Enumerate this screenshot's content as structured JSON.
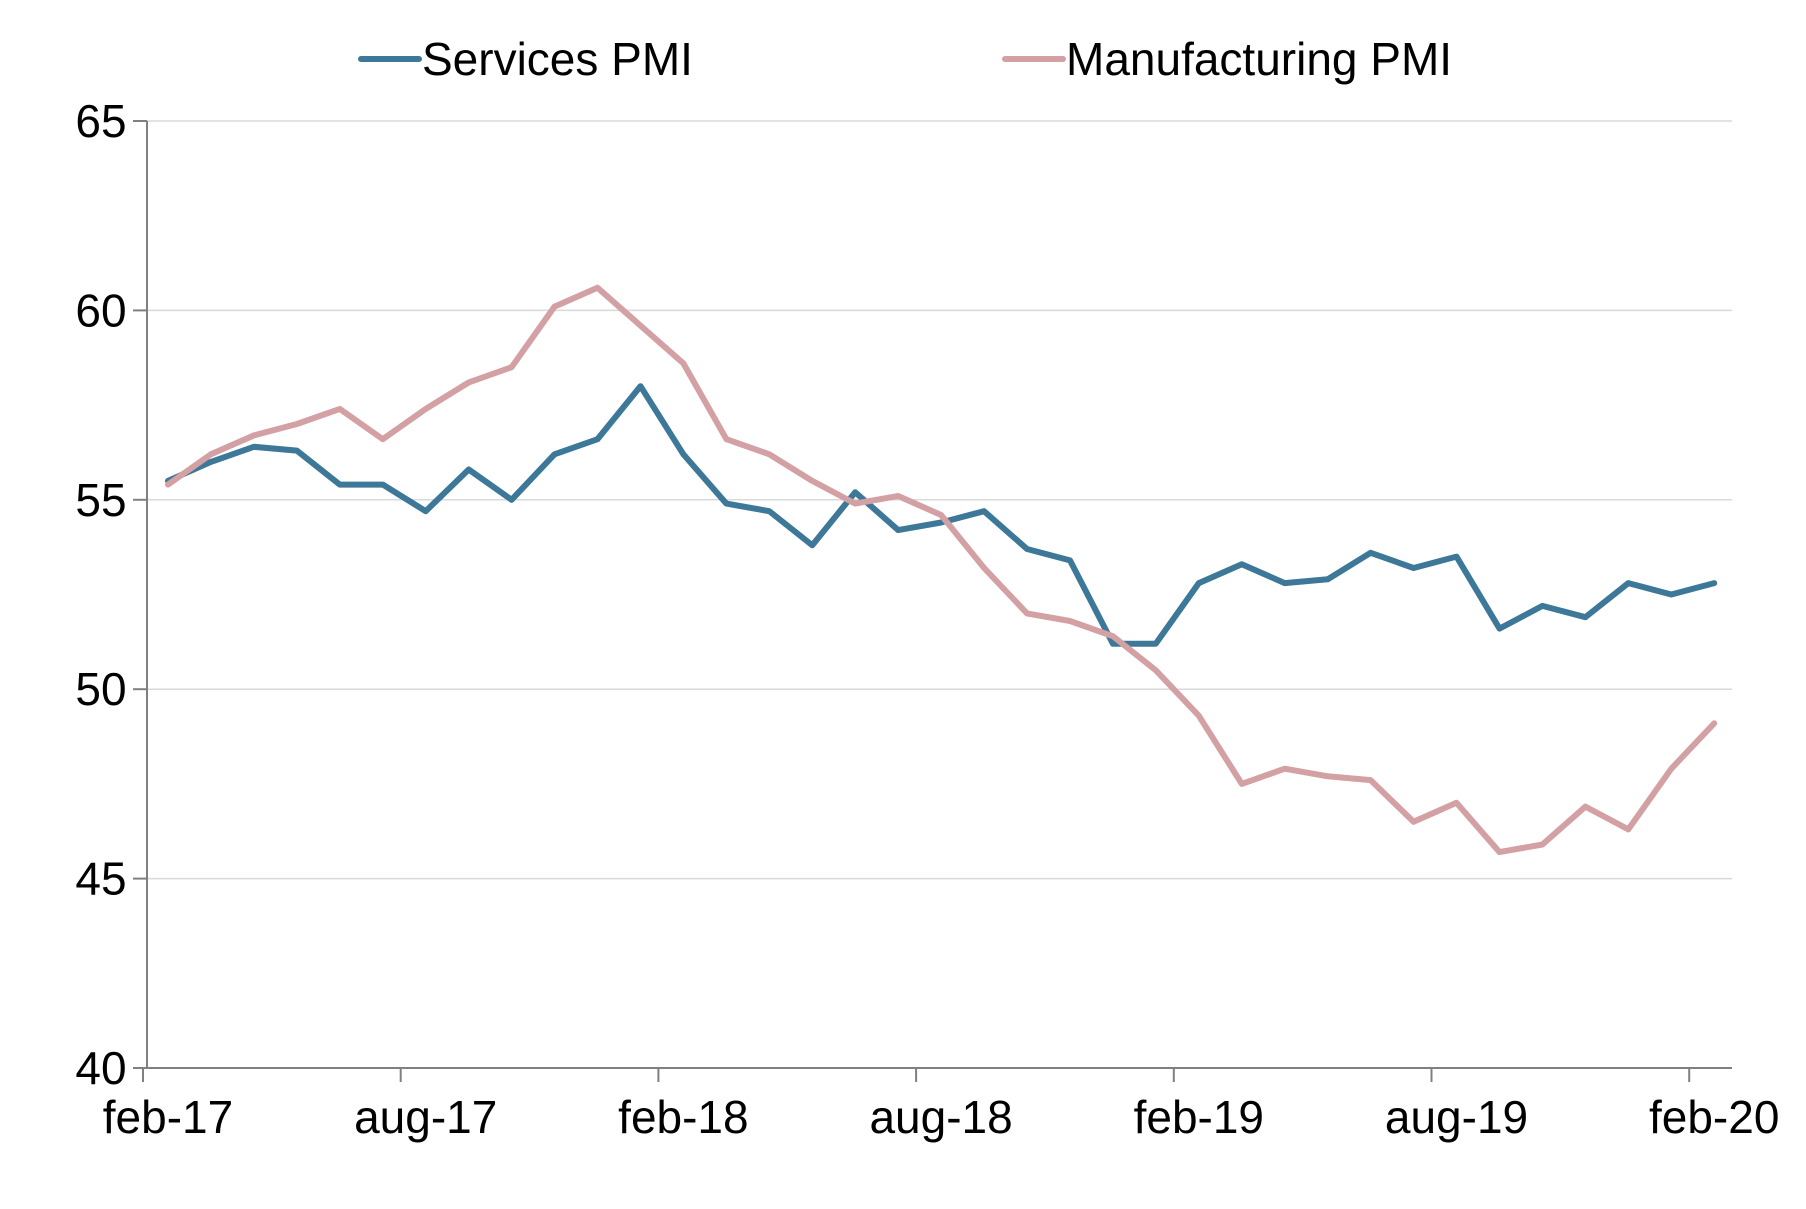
{
  "chart_data": {
    "type": "line",
    "title": "",
    "xlabel": "",
    "ylabel": "",
    "ylim": [
      40,
      65
    ],
    "yticks": [
      "40",
      "45",
      "50",
      "55",
      "60",
      "65"
    ],
    "x": [
      "2017-02",
      "2017-03",
      "2017-04",
      "2017-05",
      "2017-06",
      "2017-07",
      "2017-08",
      "2017-09",
      "2017-10",
      "2017-11",
      "2017-12",
      "2018-01",
      "2018-02",
      "2018-03",
      "2018-04",
      "2018-05",
      "2018-06",
      "2018-07",
      "2018-08",
      "2018-09",
      "2018-10",
      "2018-11",
      "2018-12",
      "2019-01",
      "2019-02",
      "2019-03",
      "2019-04",
      "2019-05",
      "2019-06",
      "2019-07",
      "2019-08",
      "2019-09",
      "2019-10",
      "2019-11",
      "2019-12",
      "2020-01",
      "2020-02"
    ],
    "xticks": [
      "feb-17",
      "aug-17",
      "feb-18",
      "aug-18",
      "feb-19",
      "aug-19",
      "feb-20"
    ],
    "xtick_dates": [
      "2017-02",
      "2017-08",
      "2018-02",
      "2018-08",
      "2019-02",
      "2019-08",
      "2020-02"
    ],
    "grid": "horizontal",
    "legend": "top",
    "series": [
      {
        "name": "Services PMI",
        "color": "#3d7898",
        "values": [
          55.5,
          56.0,
          56.4,
          56.3,
          55.4,
          55.4,
          54.7,
          55.8,
          55.0,
          56.2,
          56.6,
          58.0,
          56.2,
          54.9,
          54.7,
          53.8,
          55.2,
          54.2,
          54.4,
          54.7,
          53.7,
          53.4,
          51.2,
          51.2,
          52.8,
          53.3,
          52.8,
          52.9,
          53.6,
          53.2,
          53.5,
          51.6,
          52.2,
          51.9,
          52.8,
          52.5,
          52.8
        ]
      },
      {
        "name": "Manufacturing PMI",
        "color": "#d3a0a4",
        "values": [
          55.4,
          56.2,
          56.7,
          57.0,
          57.4,
          56.6,
          57.4,
          58.1,
          58.5,
          60.1,
          60.6,
          59.6,
          58.6,
          56.6,
          56.2,
          55.5,
          54.9,
          55.1,
          54.6,
          53.2,
          52.0,
          51.8,
          51.4,
          50.5,
          49.3,
          47.5,
          47.9,
          47.7,
          47.6,
          46.5,
          47.0,
          45.7,
          45.9,
          46.9,
          46.3,
          47.9,
          49.1
        ]
      }
    ]
  }
}
